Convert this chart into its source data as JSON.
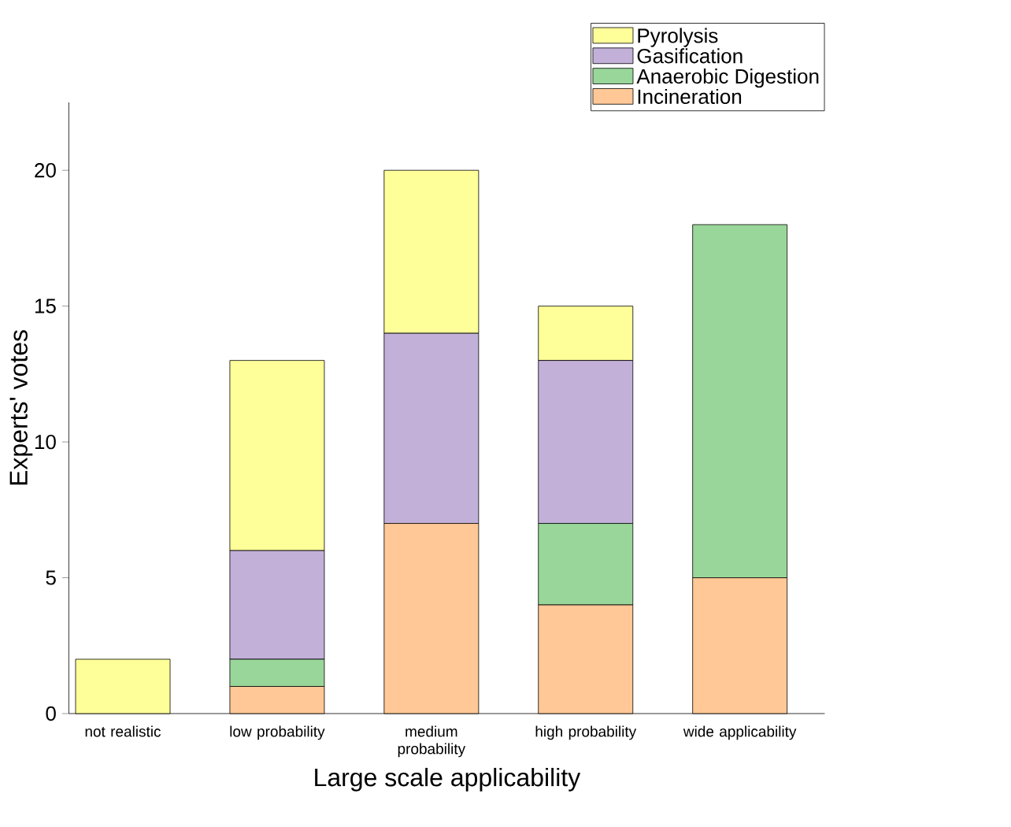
{
  "chart_data": {
    "type": "bar",
    "stacked": true,
    "xlabel": "Large scale applicability",
    "ylabel": "Experts' votes",
    "categories": [
      "not realistic",
      "low probability",
      "medium probability",
      "high probability",
      "wide applicability"
    ],
    "series": [
      {
        "name": "Incineration",
        "color": "#ffc896",
        "values": [
          0,
          1,
          7,
          4,
          5
        ]
      },
      {
        "name": "Anaerobic Digestion",
        "color": "#99d699",
        "values": [
          0,
          1,
          0,
          3,
          13
        ]
      },
      {
        "name": "Gasification",
        "color": "#c2b0d9",
        "values": [
          0,
          4,
          7,
          6,
          0
        ]
      },
      {
        "name": "Pyrolysis",
        "color": "#ffff99",
        "values": [
          2,
          7,
          6,
          2,
          0
        ]
      }
    ],
    "ylim": [
      0,
      22.5
    ],
    "yticks": [
      0,
      5,
      10,
      15,
      20
    ],
    "legend": "top right"
  }
}
